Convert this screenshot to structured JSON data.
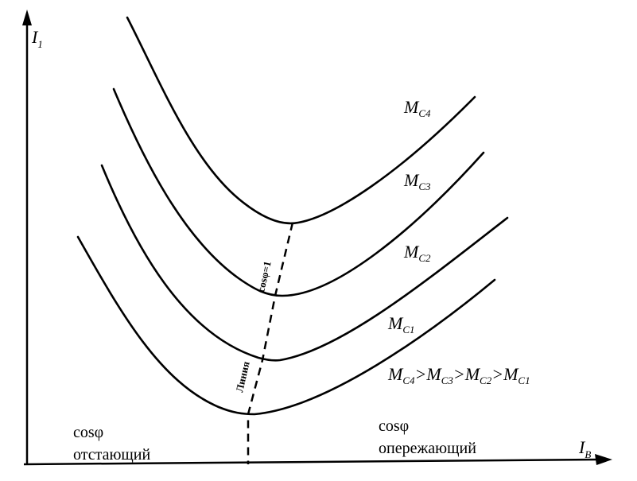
{
  "axes": {
    "y_label": "I",
    "y_sub": "1",
    "x_label": "I",
    "x_sub": "B"
  },
  "curves": [
    {
      "base": "M",
      "sub": "C4"
    },
    {
      "base": "M",
      "sub": "C3"
    },
    {
      "base": "M",
      "sub": "C2"
    },
    {
      "base": "M",
      "sub": "C1"
    }
  ],
  "relation": [
    "M",
    "C4",
    ">",
    "M",
    "C3",
    ">",
    "M",
    "C2",
    ">",
    "M",
    "C1"
  ],
  "min_line_label_top": "cosφ=1",
  "min_line_label_bottom": "Линия",
  "region_left": {
    "line1": "cosφ",
    "line2": "отстающий"
  },
  "region_right": {
    "line1": "cosφ",
    "line2": "опережающий"
  }
}
